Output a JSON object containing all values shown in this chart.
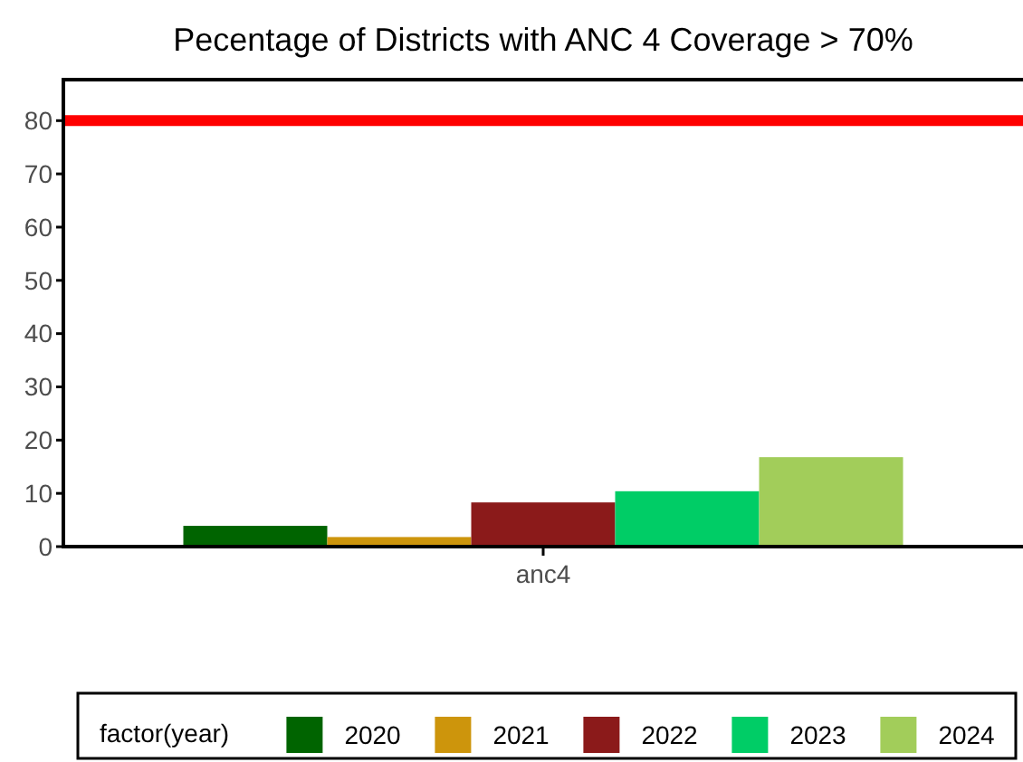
{
  "chart_data": {
    "type": "bar",
    "title": "Pecentage of Districts with ANC 4 Coverage > 70%",
    "categories": [
      "anc4"
    ],
    "series": [
      {
        "name": "2020",
        "color": "#006400",
        "values": [
          3.9
        ]
      },
      {
        "name": "2021",
        "color": "#cd950c",
        "values": [
          1.8
        ]
      },
      {
        "name": "2022",
        "color": "#8b1a1a",
        "values": [
          8.3
        ]
      },
      {
        "name": "2023",
        "color": "#00cd66",
        "values": [
          10.4
        ]
      },
      {
        "name": "2024",
        "color": "#a2cd5a",
        "values": [
          16.8
        ]
      }
    ],
    "ylim": [
      0,
      87.7
    ],
    "yticks": [
      0,
      10,
      20,
      30,
      40,
      50,
      60,
      70,
      80
    ],
    "grid": false,
    "legend": "bottom",
    "legend_title": "factor(year)",
    "ref_lines": [
      {
        "axis": "y",
        "value": 80,
        "color": "#ff0000"
      }
    ]
  }
}
